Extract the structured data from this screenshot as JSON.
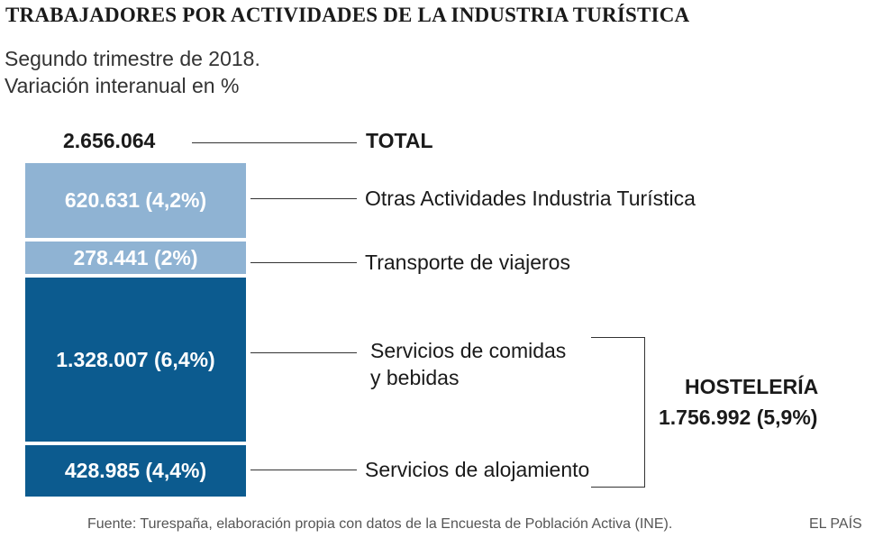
{
  "title": "TRABAJADORES POR ACTIVIDADES DE LA INDUSTRIA TURÍSTICA",
  "subtitle": [
    "Segundo trimestre de 2018.",
    "Variación interanual en %"
  ],
  "chart_data": {
    "type": "bar",
    "stacked": true,
    "title": "TRABAJADORES POR ACTIVIDADES DE LA INDUSTRIA TURÍSTICA",
    "subtitle": "Segundo trimestre de 2018. Variación interanual en %",
    "total": {
      "label": "TOTAL",
      "value": 2656064,
      "value_text": "2.656.064"
    },
    "segments": [
      {
        "name": "Otras Actividades Industria Turística",
        "value": 620631,
        "change_pct": 4.2,
        "value_text": "620.631 (4,2%)",
        "color": "#8fb3d3"
      },
      {
        "name": "Transporte de viajeros",
        "value": 278441,
        "change_pct": 2,
        "value_text": "278.441 (2%)",
        "color": "#8fb3d3"
      },
      {
        "name_lines": [
          "Servicios de comidas",
          "y bebidas"
        ],
        "name": "Servicios de comidas y bebidas",
        "value": 1328007,
        "change_pct": 6.4,
        "value_text": "1.328.007 (6,4%)",
        "color": "#0c5b8f"
      },
      {
        "name": "Servicios de alojamiento",
        "value": 428985,
        "change_pct": 4.4,
        "value_text": "428.985 (4,4%)",
        "color": "#0c5b8f"
      }
    ],
    "group": {
      "name": "HOSTELERÍA",
      "value": 1756992,
      "change_pct": 5.9,
      "value_text": "1.756.992 (5,9%)",
      "members": [
        "Servicios de comidas y bebidas",
        "Servicios de alojamiento"
      ]
    }
  },
  "footer": {
    "source": "Fuente: Turespaña, elaboración propia con datos de la Encuesta de Población Activa (INE).",
    "brand": "EL PAÍS"
  }
}
